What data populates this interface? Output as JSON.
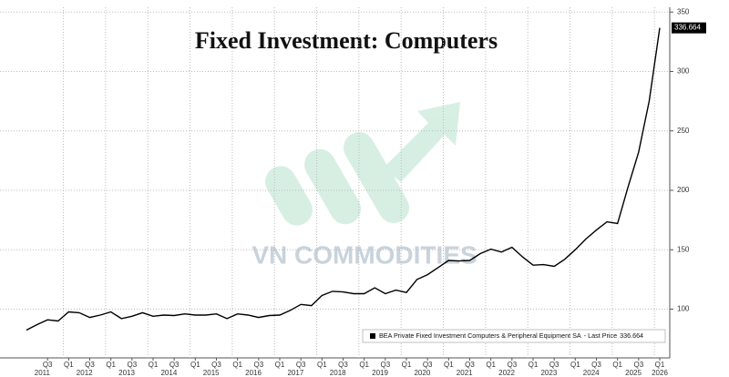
{
  "chart_data": {
    "type": "line",
    "title": "Fixed Investment: Computers",
    "watermark": "VN COMMODITIES",
    "categories": [
      null,
      null,
      "Q3",
      null,
      "Q1",
      null,
      "Q3",
      null,
      "Q1",
      null,
      "Q3",
      null,
      "Q1",
      null,
      "Q3",
      null,
      "Q1",
      null,
      "Q3",
      null,
      "Q1",
      null,
      "Q3",
      null,
      "Q1",
      null,
      "Q3",
      null,
      "Q1",
      null,
      "Q3",
      null,
      "Q1",
      null,
      "Q3",
      null,
      "Q1",
      null,
      "Q3",
      null,
      "Q1",
      null,
      "Q3",
      null,
      "Q1",
      null,
      "Q3",
      null,
      "Q1",
      null,
      "Q3",
      null,
      "Q1",
      null,
      "Q3",
      null,
      "Q1",
      null,
      "Q3",
      null,
      "Q1"
    ],
    "years": [
      "2011",
      "2012",
      "2013",
      "2014",
      "2015",
      "2016",
      "2017",
      "2018",
      "2019",
      "2020",
      "2021",
      "2022",
      "2023",
      "2024",
      "2025",
      "2026"
    ],
    "series": [
      {
        "name": "BEA Private Fixed Investment Computers & Peripheral Equipment SA",
        "color": "#000000",
        "values": [
          82.4,
          87,
          91,
          90,
          97.7,
          97,
          93,
          95,
          97.7,
          92,
          94,
          97,
          94,
          95,
          94.6,
          96,
          95,
          95,
          96,
          92,
          96,
          95,
          93,
          94.6,
          95,
          99,
          104,
          103,
          111.5,
          115,
          114.5,
          113,
          113,
          118,
          113,
          116,
          114,
          125,
          129,
          135,
          141,
          140.5,
          141,
          146.7,
          150.5,
          148,
          152,
          144,
          137,
          137.5,
          136,
          142,
          150,
          159,
          166.6,
          173.5,
          172,
          203,
          232,
          275,
          336.664
        ]
      }
    ],
    "last_price_label": "- Last Price",
    "ylim": [
      59,
      354
    ],
    "yticks": [
      100,
      150,
      200,
      250,
      300,
      350
    ],
    "grid": true,
    "legend_position": "lower-right"
  }
}
